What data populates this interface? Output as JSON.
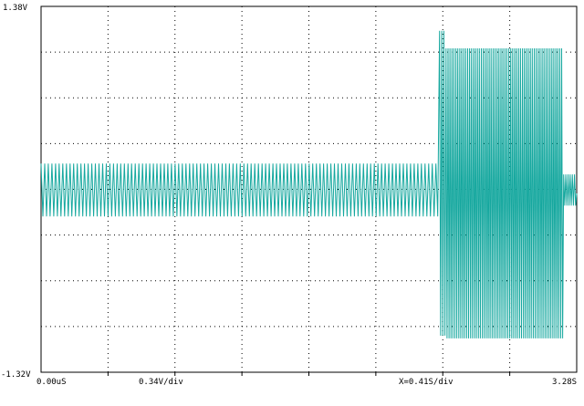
{
  "chart_data": {
    "type": "line",
    "grid": true,
    "y_max_label": "1.38V",
    "y_min_label": "-1.32V",
    "x_start_label": "0.00uS",
    "x_end_label": "3.28S",
    "v_div_label": "0.34V/div",
    "t_div_label": "X=0.41S/div",
    "ylim": [
      -1.32,
      1.38
    ],
    "xlim": [
      0,
      3.28
    ],
    "series": [
      {
        "color": "#16a89f",
        "segments": [
          {
            "t_start": 0.0,
            "t_end": 2.44,
            "v_max": 0.22,
            "v_min": -0.17,
            "cycles": 110
          },
          {
            "t_start": 2.44,
            "t_end": 2.48,
            "v_max": 1.2,
            "v_min": -1.05,
            "cycles": 3
          },
          {
            "t_start": 2.48,
            "t_end": 3.2,
            "v_max": 1.07,
            "v_min": -1.07,
            "cycles": 60
          },
          {
            "t_start": 3.2,
            "t_end": 3.28,
            "v_max": 0.14,
            "v_min": -0.09,
            "cycles": 6
          }
        ]
      }
    ]
  }
}
